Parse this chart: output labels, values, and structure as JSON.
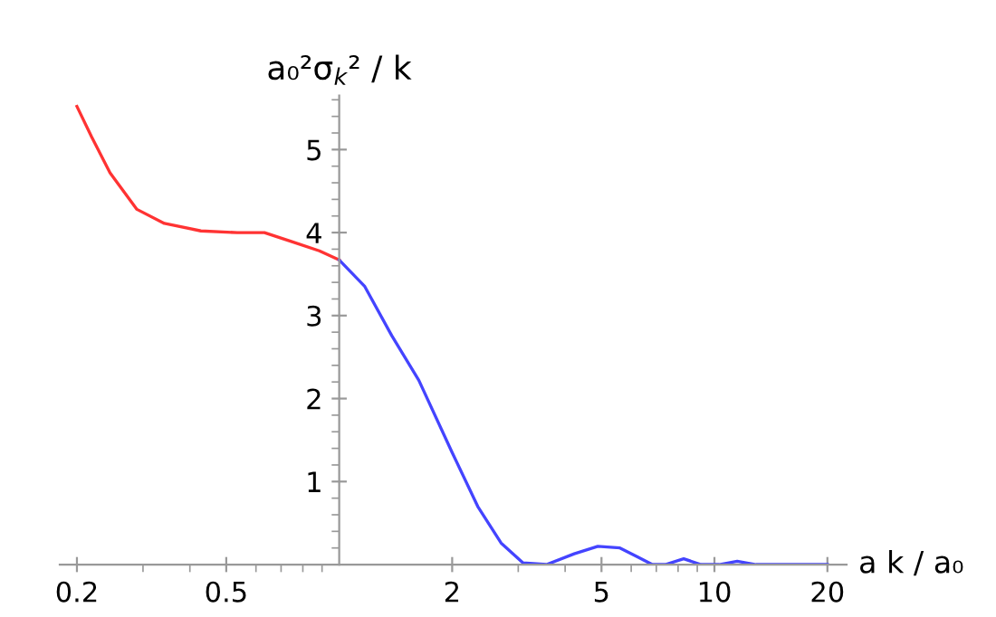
{
  "chart_data": {
    "type": "line",
    "xlabel": "a k / a₀",
    "ylabel": "a₀²σ$_{k}$² / k",
    "log": "x",
    "xlim": [
      0.18,
      22.5
    ],
    "ylim": [
      0,
      5.65
    ],
    "xticks": [
      {
        "value": 0.2,
        "label": "0.2"
      },
      {
        "value": 0.5,
        "label": "0.5"
      },
      2,
      5,
      10,
      20
    ],
    "yticks": [
      1,
      2,
      3,
      4,
      5
    ],
    "grid": false,
    "legend": false,
    "series": [
      {
        "color": "#ff3333",
        "x": [
          0.2,
          0.219,
          0.245,
          0.289,
          0.342,
          0.428,
          0.535,
          0.632,
          0.748,
          0.885,
          1
        ],
        "values": [
          5.52,
          5.15,
          4.72,
          4.28,
          4.11,
          4.02,
          4.0,
          4.0,
          3.89,
          3.78,
          3.67
        ]
      },
      {
        "color": "#4444ff",
        "x": [
          1,
          1.17,
          1.38,
          1.63,
          2,
          2.34,
          2.7,
          3.09,
          3.57,
          4.23,
          4.89,
          5.6,
          6.25,
          6.83,
          7.4,
          8.28,
          9.2,
          10.3,
          11.5,
          12.9,
          20
        ],
        "values": [
          3.67,
          3.35,
          2.76,
          2.22,
          1.35,
          0.7,
          0.26,
          0.02,
          0,
          0.13,
          0.22,
          0.2,
          0.09,
          0,
          0,
          0.07,
          0,
          0,
          0.04,
          0,
          0
        ]
      }
    ]
  }
}
